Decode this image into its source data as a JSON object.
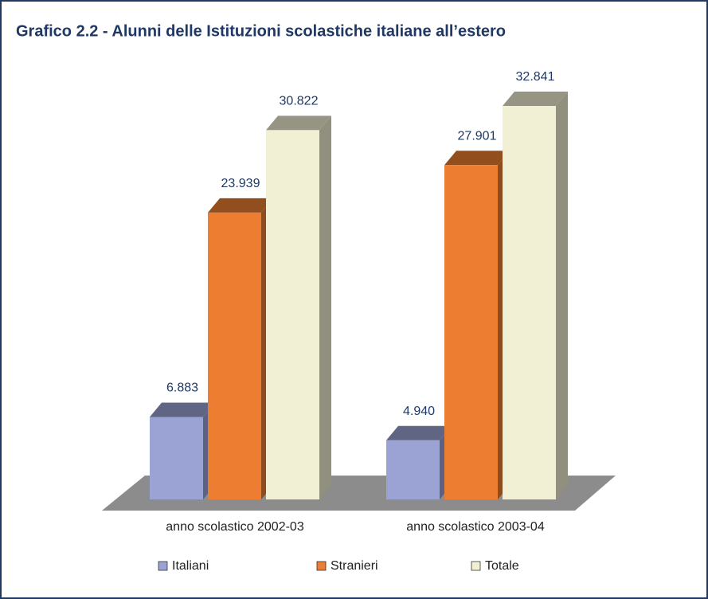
{
  "chart_data": {
    "type": "bar3d",
    "title": "Grafico 2.2 - Alunni delle Istituzioni scolastiche italiane all’estero",
    "categories": [
      "anno scolastico 2002-03",
      "anno scolastico 2003-04"
    ],
    "series": [
      {
        "name": "Italiani",
        "color": "#9aa3d4",
        "values": [
          6883,
          4940
        ],
        "value_labels": [
          "6.883",
          "4.940"
        ]
      },
      {
        "name": "Stranieri",
        "color": "#ed7d31",
        "values": [
          23939,
          27901
        ],
        "value_labels": [
          "23.939",
          "27.901"
        ]
      },
      {
        "name": "Totale",
        "color": "#f2f0d4",
        "values": [
          30822,
          32841
        ],
        "value_labels": [
          "30.822",
          "32.841"
        ]
      }
    ]
  }
}
